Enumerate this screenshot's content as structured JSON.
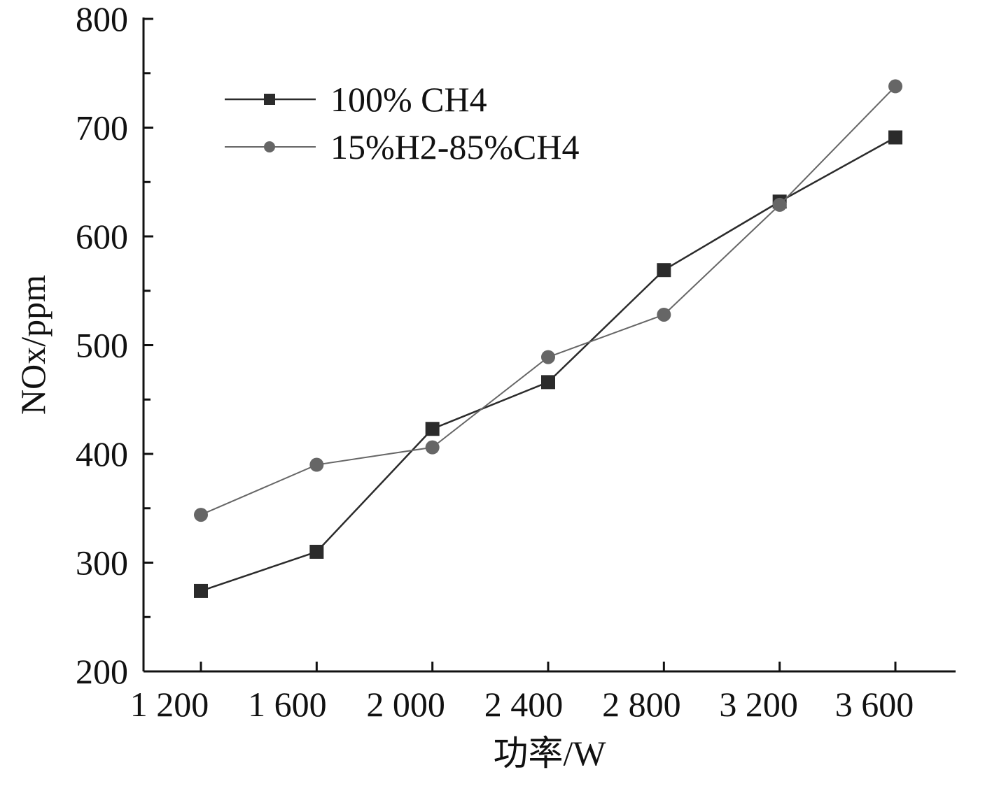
{
  "chart_data": {
    "type": "line",
    "xlabel": "功率/W",
    "ylabel": "NOx/ppm",
    "xlim": [
      1000,
      3900
    ],
    "ylim": [
      200,
      800
    ],
    "x_ticks": [
      {
        "value": 1200,
        "label": "1 200"
      },
      {
        "value": 1600,
        "label": "1 600"
      },
      {
        "value": 2000,
        "label": "2 000"
      },
      {
        "value": 2400,
        "label": "2 400"
      },
      {
        "value": 2800,
        "label": "2 800"
      },
      {
        "value": 3200,
        "label": "3 200"
      },
      {
        "value": 3600,
        "label": "3 600"
      }
    ],
    "y_ticks": [
      {
        "value": 200,
        "label": "200"
      },
      {
        "value": 300,
        "label": "300"
      },
      {
        "value": 400,
        "label": "400"
      },
      {
        "value": 500,
        "label": "500"
      },
      {
        "value": 600,
        "label": "600"
      },
      {
        "value": 700,
        "label": "700"
      },
      {
        "value": 800,
        "label": "800"
      }
    ],
    "y_minor_step": 50,
    "grid": false,
    "legend_position": "top-left",
    "x": [
      1200,
      1600,
      2000,
      2400,
      2800,
      3200,
      3600
    ],
    "series": [
      {
        "name": "100% CH4",
        "marker": "square",
        "color": "#2b2b2b",
        "values": [
          274,
          310,
          423,
          466,
          569,
          632,
          691
        ]
      },
      {
        "name": "15%H2-85%CH4",
        "marker": "circle",
        "color": "#666666",
        "values": [
          344,
          390,
          406,
          489,
          528,
          629,
          738
        ]
      }
    ]
  }
}
